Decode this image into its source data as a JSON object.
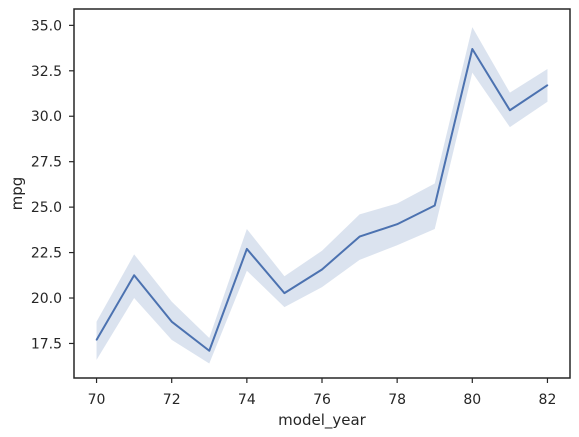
{
  "chart_data": {
    "type": "line",
    "xlabel": "model_year",
    "ylabel": "mpg",
    "xlim": [
      69.4,
      82.6
    ],
    "ylim": [
      15.6,
      35.9
    ],
    "xticks": [
      70,
      72,
      74,
      76,
      78,
      80,
      82
    ],
    "xtick_labels": [
      "70",
      "72",
      "74",
      "76",
      "78",
      "80",
      "82"
    ],
    "yticks": [
      17.5,
      20.0,
      22.5,
      25.0,
      27.5,
      30.0,
      32.5,
      35.0
    ],
    "ytick_labels": [
      "17.5",
      "20.0",
      "22.5",
      "25.0",
      "27.5",
      "30.0",
      "32.5",
      "35.0"
    ],
    "grid": false,
    "line_color": "#4c72b0",
    "band_color": "#4c72b0",
    "series": [
      {
        "x": [
          70,
          71,
          72,
          73,
          74,
          75,
          76,
          77,
          78,
          79,
          80,
          81,
          82
        ],
        "values": [
          17.7,
          21.25,
          18.7,
          17.1,
          22.7,
          20.27,
          21.57,
          23.38,
          24.06,
          25.09,
          33.7,
          30.33,
          31.71
        ],
        "lower": [
          16.6,
          20.0,
          17.7,
          16.4,
          21.5,
          19.5,
          20.6,
          22.1,
          22.9,
          23.8,
          32.4,
          29.4,
          30.8
        ],
        "upper": [
          18.7,
          22.4,
          19.8,
          17.8,
          23.8,
          21.2,
          22.6,
          24.6,
          25.2,
          26.3,
          34.9,
          31.3,
          32.6
        ]
      }
    ]
  }
}
